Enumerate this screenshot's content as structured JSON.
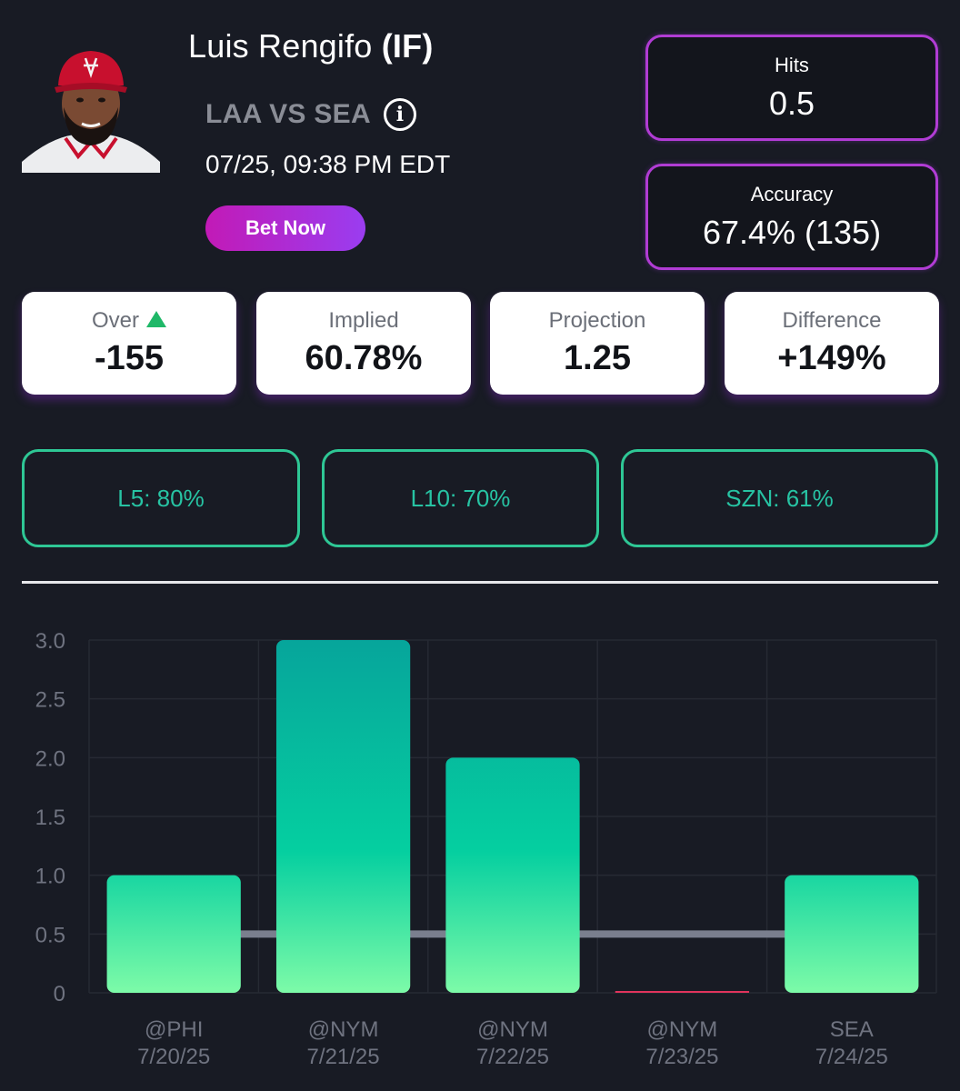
{
  "player": {
    "name": "Luis Rengifo",
    "position": "(IF)",
    "matchup": "LAA VS SEA",
    "game_time": "07/25, 09:38 PM EDT",
    "photo_icon": "player-headshot"
  },
  "actions": {
    "bet_label": "Bet Now"
  },
  "prop": {
    "label": "Hits",
    "line": "0.5",
    "accuracy_label": "Accuracy",
    "accuracy_value": "67.4% (135)"
  },
  "stats": [
    {
      "label": "Over",
      "value": "-155",
      "icon": "up-triangle-icon"
    },
    {
      "label": "Implied",
      "value": "60.78%"
    },
    {
      "label": "Projection",
      "value": "1.25"
    },
    {
      "label": "Difference",
      "value": "+149%"
    }
  ],
  "hit_rates": [
    {
      "label": "L5: 80%"
    },
    {
      "label": "L10: 70%"
    },
    {
      "label": "SZN: 61%"
    }
  ],
  "colors": {
    "background": "#181b24",
    "accent_purple": "#b13cd4",
    "accent_green": "#2ec795",
    "bar_top": "#06a59b",
    "bar_bottom": "#7dfba8",
    "line": "#7a7f8e",
    "zero_bar": "#e0335c"
  },
  "chart_data": {
    "type": "bar",
    "categories": [
      "@PHI",
      "@NYM",
      "@NYM",
      "@NYM",
      "SEA"
    ],
    "dates": [
      "7/20/25",
      "7/21/25",
      "7/22/25",
      "7/23/25",
      "7/24/25"
    ],
    "values": [
      1,
      3,
      2,
      0,
      1
    ],
    "line_value": 0.5,
    "ylim": [
      0,
      3
    ],
    "yticks": [
      "0",
      "0.5",
      "1.0",
      "1.5",
      "2.0",
      "2.5",
      "3.0"
    ],
    "grid": true
  }
}
